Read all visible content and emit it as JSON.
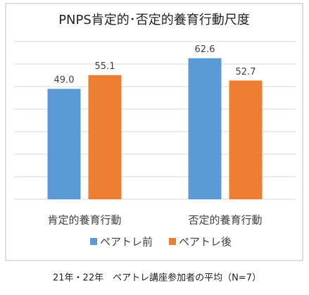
{
  "chart_data": {
    "type": "bar",
    "title": "PNPS肯定的･否定的養育行動尺度",
    "categories": [
      "肯定的養育行動",
      "否定的養育行動"
    ],
    "series": [
      {
        "name": "ペアトレ前",
        "color": "#5b9bd5",
        "values": [
          49.0,
          62.6
        ],
        "value_labels": [
          "49.0",
          "62.6"
        ]
      },
      {
        "name": "ペアトレ後",
        "color": "#ed7d31",
        "values": [
          55.1,
          52.7
        ],
        "value_labels": [
          "55.1",
          "52.7"
        ]
      }
    ],
    "ylim": [
      0,
      70
    ],
    "yticks": [
      0,
      10,
      20,
      30,
      40,
      50,
      60,
      70
    ],
    "grid": true,
    "legend": "bottom"
  },
  "footnote": "21年・22年　ペアトレ講座参加者の平均（N=7）"
}
